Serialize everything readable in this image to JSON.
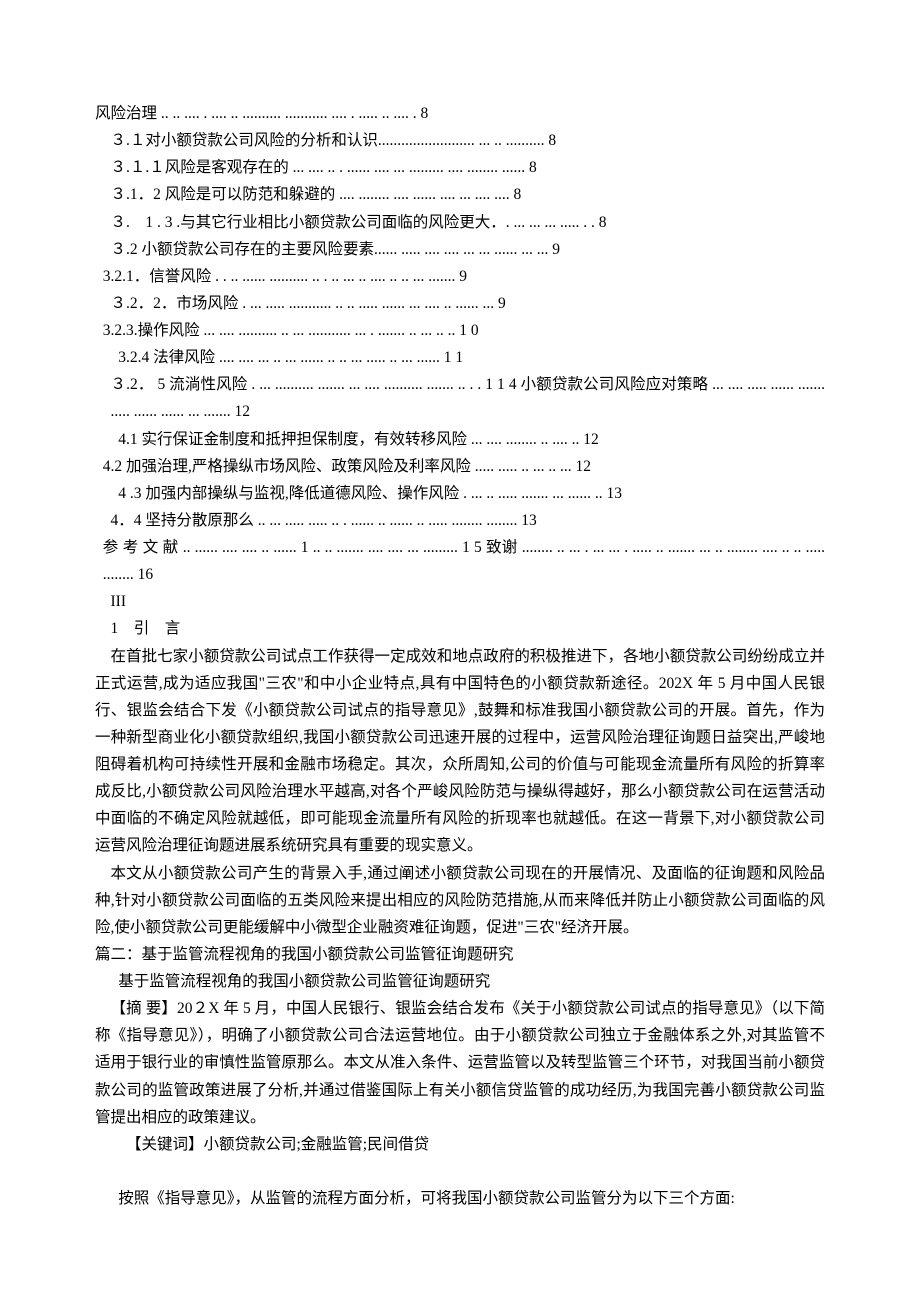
{
  "toc": {
    "l1": "风险治理 .. .. .... . .... .. .......... ........... .... . ..... .. .... .   8",
    "l2": "３.１对小额贷款公司风险的分析和认识.........................  ...  ..  .......... 8",
    "l3": "３.１.１风险是客观存在的  ...  ....  ..  . ......  ....  ...  .........  ....  ........  ...... 8",
    "l4": "３.1．2 风险是可以防范和躲避的  .... ........  .... ......  ....  ...  ....  .... 8",
    "l5": "３.　1 . 3 .与其它行业相比小额贷款公司面临的风险更大．.  ...  ...  ... .....  .  . 8",
    "l6": "３.2 小额贷款公司存在的主要风险要素......  .....  .... ....  ... ...  ......  ...  ... 9",
    "l7": "3.2.1．信誉风险 . . ..  ......  ..........  ..  . ..  ...  ..  ....  .. ..  ... ....... 9",
    "l8": "３.2．2．市场风险 . ...  .....  ........... ..  .. .....  ......  ... .... .. ......  ... 9",
    "l9": "3.2.3.操作风险  ...  ....  ..........  ..  ...  ...........  ... .  .......  ..  ...  ..  ..    1 0",
    "l10": "3.2.4 法律风险  ....  ....  ...  ..  ...  ......  ..  ..  ... .....  ..  ... ......   1 1",
    "l11": "３.2． 5 流淌性风险 .  ...  ..........  .......  ...  ....  ..........  .......  ..  . .    1 1 4 小额贷款公司风险应对策略   ...  ....  .....  ......  ....... .....  ......  ......  ...  ....... 12",
    "l12": "4.1 实行保证金制度和抵押担保制度，有效转移风险  ...  ....  ........ ..  ....  ..    12",
    "l13": "4.2 加强治理,严格操纵市场风险、政策风险及利率风险  .....  .....  ..  ...  ..  ... 12",
    "l14": "4 .3 加强内部操纵与监视,降低道德风险、操作风险 .  ...  ..  .....  .......  ...  ......  .. 13",
    "l15": "4．4 坚持分散原那么 ..  ...  .....  .....  ..  . ......  ..  ......  ..  .....  ........  ........ 13",
    "l16": "参 考 文 献    ..  ......  ....  ....  ..  ......     1   .. ..  .......   ....  ....  ...  .........      1  5    致谢  ........   ..  ...  . ...  ...  . .....  ..  .......  ...  ..  ........ ....  ..   ..  ..... ........ 16",
    "roman": "III"
  },
  "chapter1": {
    "title": "1　引　言",
    "p1": "在首批七家小额贷款公司试点工作获得一定成效和地点政府的积极推进下，各地小额贷款公司纷纷成立并正式运营,成为适应我国\"三农\"和中小企业特点,具有中国特色的小额贷款新途径。202X 年 5 月中国人民银行、银监会结合下发《小额贷款公司试点的指导意见》,鼓舞和标准我国小额贷款公司的开展。首先，作为一种新型商业化小额贷款组织,我国小额贷款公司迅速开展的过程中，运营风险治理征询题日益突出,严峻地阻碍着机构可持续性开展和金融市场稳定。其次，众所周知,公司的价值与可能现金流量所有风险的折算率成反比,小额贷款公司风险治理水平越高,对各个严峻风险防范与操纵得越好，那么小额贷款公司在运营活动中面临的不确定风险就越低，即可能现金流量所有风险的折现率也就越低。在这一背景下,对小额贷款公司运营风险治理征询题进展系统研究具有重要的现实意义。",
    "p2": "本文从小额贷款公司产生的背景入手,通过阐述小额贷款公司现在的开展情况、及面临的征询题和风险品种,针对小额贷款公司面临的五类风险来提出相应的风险防范措施,从而来降低并防止小额贷款公司面临的风险,使小额贷款公司更能缓解中小微型企业融资难征询题，促进\"三农\"经济开展。"
  },
  "chapter2": {
    "heading": "篇二：基于监管流程视角的我国小额贷款公司监管征询题研究",
    "title": "基于监管流程视角的我国小额贷款公司监管征询题研究",
    "abstract": "【摘 要】20２X 年 5 月，中国人民银行、银监会结合发布《关于小额贷款公司试点的指导意见》（以下简称《指导意见》），明确了小额贷款公司合法运营地位。由于小额贷款公司独立于金融体系之外,对其监管不适用于银行业的审慎性监管原那么。本文从准入条件、运营监管以及转型监管三个环节，对我国当前小额贷款公司的监管政策进展了分析,并通过借鉴国际上有关小额信贷监管的成功经历,为我国完善小额贷款公司监管提出相应的政策建议。",
    "keywords": "【关键词】小额贷款公司;金融监管;民间借贷",
    "p1": "按照《指导意见》，从监管的流程方面分析，可将我国小额贷款公司监管分为以下三个方面:"
  }
}
